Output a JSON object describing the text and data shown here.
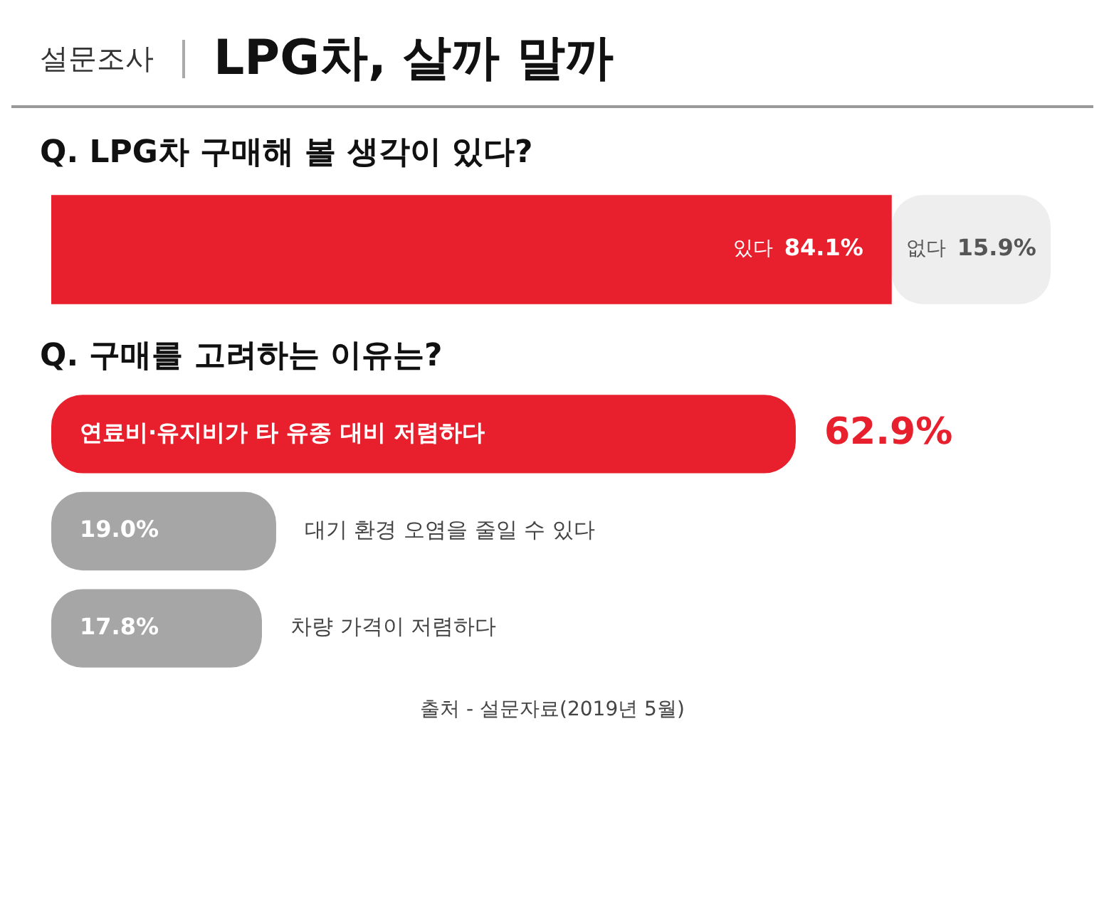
{
  "chart_data": [
    {
      "type": "other",
      "title": "LPG차, 살까 말까",
      "subtitle": "설문조사"
    },
    {
      "type": "bar",
      "title": "Q. LPG차 구매해 볼 생각이 있다?",
      "orientation": "horizontal",
      "stacked": true,
      "categories": [
        null
      ],
      "grid": false,
      "legend": false,
      "series": [
        {
          "name": "있다",
          "color": "#e8202e",
          "values": [
            84.1
          ],
          "value_labels": [
            "84.1%"
          ]
        },
        {
          "name": "없다",
          "color": "#eeeeee",
          "values": [
            15.9
          ],
          "value_labels": [
            "15.9%"
          ]
        }
      ]
    },
    {
      "type": "bar",
      "title": "Q. 구매를 고려하는 이유는?",
      "orientation": "horizontal",
      "categories": [
        "연료비·유지비가 타 유종 대비 저렴하다",
        "대기 환경 오염을 줄일 수 있다",
        "차량 가격이 저렴하다"
      ],
      "values": [
        62.9,
        19.0,
        17.8
      ],
      "colors": [
        "#e8202e",
        "#a6a6a6",
        "#a6a6a6"
      ],
      "value_labels": [
        "62.9%",
        "19.0%",
        "17.8%"
      ],
      "grid": false,
      "legend": false,
      "annotations": [
        "출처 - 설문자료(2019년 5월)"
      ]
    }
  ]
}
